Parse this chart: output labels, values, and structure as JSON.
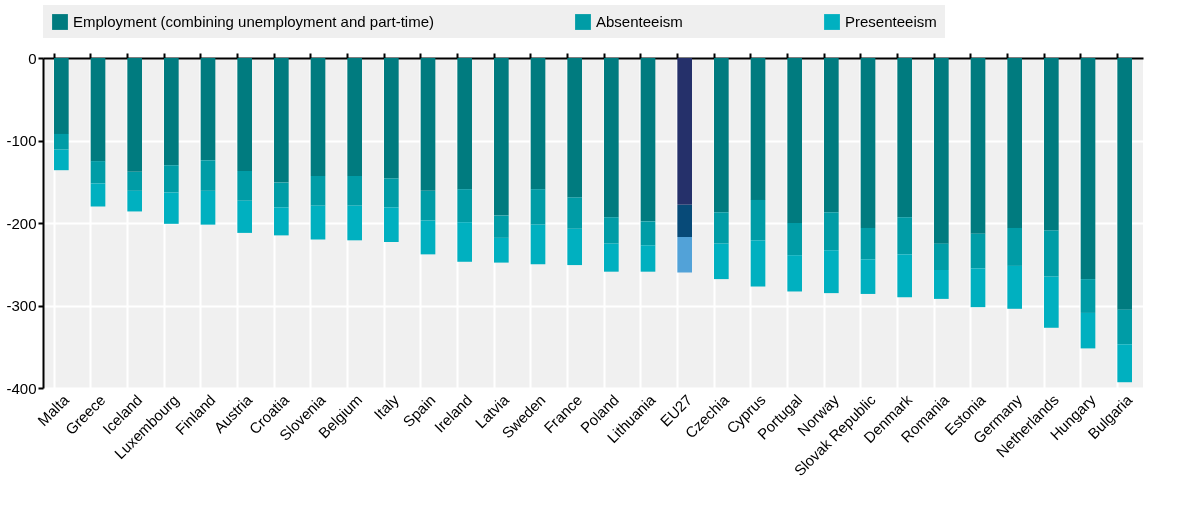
{
  "chart_data": {
    "type": "bar",
    "stacked": true,
    "categories": [
      "Malta",
      "Greece",
      "Iceland",
      "Luxembourg",
      "Finland",
      "Austria",
      "Croatia",
      "Slovenia",
      "Belgium",
      "Italy",
      "Spain",
      "Ireland",
      "Latvia",
      "Sweden",
      "France",
      "Poland",
      "Lithuania",
      "EU27",
      "Czechia",
      "Cyprus",
      "Portugal",
      "Norway",
      "Slovak Republic",
      "Denmark",
      "Romania",
      "Estonia",
      "Germany",
      "Netherlands",
      "Hungary",
      "Bulgaria"
    ],
    "series": [
      {
        "name": "Employment (combining unemployment and part-time)",
        "color": "#007b7f",
        "colors": [
          "#007b7f",
          "#007b7f",
          "#007b7f",
          "#007b7f",
          "#007b7f",
          "#007b7f",
          "#007b7f",
          "#007b7f",
          "#007b7f",
          "#007b7f",
          "#007b7f",
          "#007b7f",
          "#007b7f",
          "#007b7f",
          "#007b7f",
          "#007b7f",
          "#007b7f",
          "#25306a",
          "#007b7f",
          "#007b7f",
          "#007b7f",
          "#007b7f",
          "#007b7f",
          "#007b7f",
          "#007b7f",
          "#007b7f",
          "#007b7f",
          "#007b7f",
          "#007b7f",
          "#007b7f"
        ],
        "values": [
          -92,
          -125,
          -138,
          -130,
          -124,
          -137,
          -151,
          -143,
          -143,
          -146,
          -161,
          -159,
          -191,
          -159,
          -169,
          -193,
          -198,
          -178,
          -187,
          -172,
          -200,
          -187,
          -206,
          -193,
          -225,
          -213,
          -206,
          -209,
          -268,
          -305
        ]
      },
      {
        "name": "Absenteeism",
        "color": "#009ca6",
        "colors": [
          "#009ca6",
          "#009ca6",
          "#009ca6",
          "#009ca6",
          "#009ca6",
          "#009ca6",
          "#009ca6",
          "#009ca6",
          "#009ca6",
          "#009ca6",
          "#009ca6",
          "#009ca6",
          "#009ca6",
          "#009ca6",
          "#009ca6",
          "#009ca6",
          "#009ca6",
          "#074a78",
          "#009ca6",
          "#009ca6",
          "#009ca6",
          "#009ca6",
          "#009ca6",
          "#009ca6",
          "#009ca6",
          "#009ca6",
          "#009ca6",
          "#009ca6",
          "#009ca6",
          "#009ca6"
        ],
        "values": [
          -19,
          -27,
          -23,
          -33,
          -37,
          -36,
          -30,
          -36,
          -36,
          -35,
          -36,
          -40,
          -27,
          -43,
          -38,
          -32,
          -29,
          -39,
          -38,
          -49,
          -39,
          -46,
          -38,
          -45,
          -32,
          -42,
          -46,
          -56,
          -41,
          -42
        ]
      },
      {
        "name": "Presenteeism",
        "color": "#00b0c0",
        "colors": [
          "#00b0c0",
          "#00b0c0",
          "#00b0c0",
          "#00b0c0",
          "#00b0c0",
          "#00b0c0",
          "#00b0c0",
          "#00b0c0",
          "#00b0c0",
          "#00b0c0",
          "#00b0c0",
          "#00b0c0",
          "#00b0c0",
          "#00b0c0",
          "#00b0c0",
          "#00b0c0",
          "#00b0c0",
          "#52a2d8",
          "#00b0c0",
          "#00b0c0",
          "#00b0c0",
          "#00b0c0",
          "#00b0c0",
          "#00b0c0",
          "#00b0c0",
          "#00b0c0",
          "#00b0c0",
          "#00b0c0",
          "#00b0c0",
          "#00b0c0"
        ],
        "values": [
          -25,
          -28,
          -25,
          -38,
          -41,
          -39,
          -34,
          -41,
          -42,
          -42,
          -41,
          -48,
          -30,
          -48,
          -44,
          -34,
          -32,
          -43,
          -43,
          -56,
          -44,
          -52,
          -42,
          -52,
          -35,
          -47,
          -52,
          -62,
          -43,
          -46
        ]
      }
    ],
    "ylim": [
      -400,
      0
    ],
    "yticks": [
      0,
      -100,
      -200,
      -300,
      -400
    ],
    "grid": true,
    "legend": "top"
  }
}
